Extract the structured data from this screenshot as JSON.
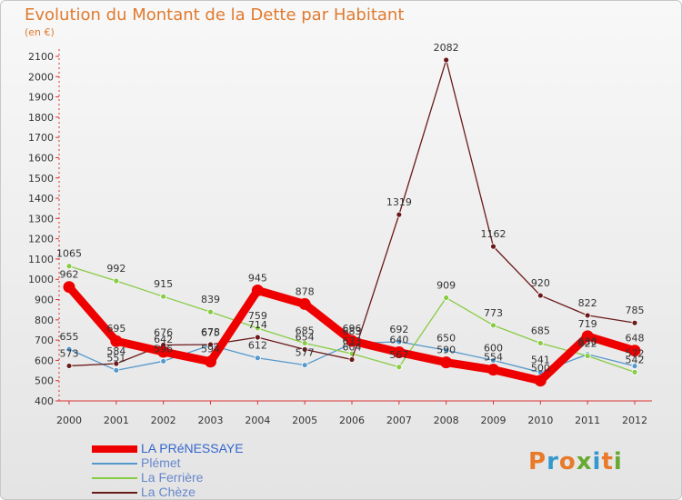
{
  "chart_data": {
    "type": "line",
    "title": "Evolution du Montant de la Dette par Habitant",
    "unit_label": "(en €)",
    "x": [
      "2000",
      "2001",
      "2002",
      "2003",
      "2004",
      "2005",
      "2006",
      "2007",
      "2008",
      "2009",
      "2010",
      "2011",
      "2012"
    ],
    "ylim": [
      400,
      2100
    ],
    "yticks": [
      400,
      500,
      600,
      700,
      800,
      900,
      1000,
      1100,
      1200,
      1300,
      1400,
      1500,
      1600,
      1700,
      1800,
      1900,
      2000,
      2100
    ],
    "grid": false,
    "legend_position": "bottom-left",
    "series": [
      {
        "name": "LA PRéNESSAYE",
        "color": "#ee0000",
        "values": [
          962,
          695,
          642,
          594,
          945,
          878,
          696,
          640,
          590,
          554,
          500,
          719,
          648
        ]
      },
      {
        "name": "Plémet",
        "color": "#5599cc",
        "values": [
          655,
          551,
          596,
          675,
          612,
          577,
          683,
          692,
          650,
          600,
          541,
          630,
          572
        ]
      },
      {
        "name": "La Ferrière",
        "color": "#88cc44",
        "values": [
          1065,
          992,
          915,
          839,
          759,
          685,
          633,
          567,
          909,
          773,
          685,
          622,
          542
        ]
      },
      {
        "name": "La Chèze",
        "color": "#6b1a1a",
        "values": [
          573,
          584,
          676,
          678,
          714,
          654,
          604,
          1319,
          2082,
          1162,
          920,
          822,
          785
        ]
      }
    ]
  },
  "logo": {
    "letters": [
      "P",
      "r",
      "o",
      "x",
      "i",
      "t",
      "i"
    ],
    "colors": [
      "#e87a2a",
      "#3399cc",
      "#e87a2a",
      "#66aa33",
      "#3399cc",
      "#e87a2a",
      "#66aa33"
    ]
  }
}
